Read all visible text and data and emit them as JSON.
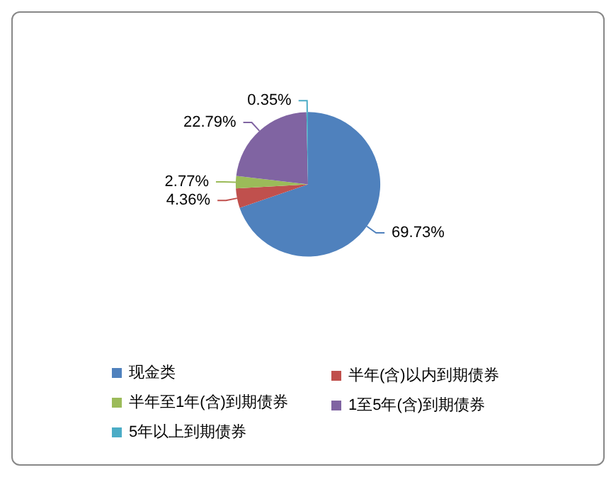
{
  "chart_data": {
    "type": "pie",
    "categories": [
      "现金类",
      "半年(含)以内到期债券",
      "半年至1年(含)到期债券",
      "1至5年(含)到期债券",
      "5年以上到期债券"
    ],
    "values": [
      69.73,
      4.36,
      2.77,
      22.79,
      0.35
    ],
    "value_labels": [
      "69.73%",
      "4.36%",
      "2.77%",
      "22.79%",
      "0.35%"
    ],
    "colors": [
      "#4f81bd",
      "#c0504d",
      "#9bbb59",
      "#8064a2",
      "#4bacc6"
    ],
    "legend": "bottom"
  }
}
